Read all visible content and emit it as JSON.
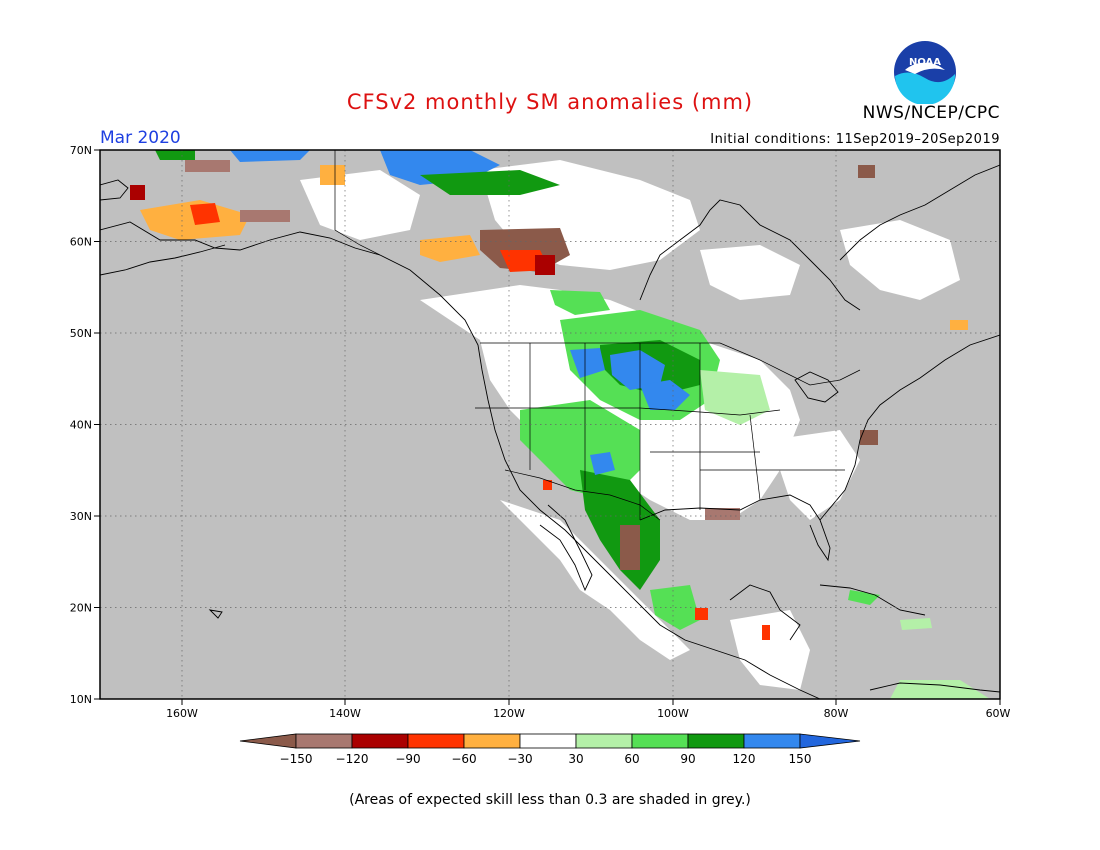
{
  "title": "CFSv2 monthly SM anomalies (mm)",
  "month": "Mar 2020",
  "initial_conditions": "Initial conditions: 11Sep2019–20Sep2019",
  "agency": "NWS/NCEP/CPC",
  "logo_text": "NOAA",
  "footnote": "(Areas of expected skill less than 0.3 are shaded in grey.)",
  "axes": {
    "lon_labels": [
      "160W",
      "140W",
      "120W",
      "100W",
      "80W",
      "60W"
    ],
    "lat_labels": [
      "70N",
      "60N",
      "50N",
      "40N",
      "30N",
      "20N",
      "10N"
    ]
  },
  "colors": {
    "land_grey": "#c0c0c0",
    "title_red": "#dd1111",
    "month_blue": "#1e3fe0"
  },
  "colorbar": {
    "ticks": [
      "−150",
      "−120",
      "−90",
      "−60",
      "−30",
      "30",
      "60",
      "90",
      "120",
      "150"
    ],
    "bins": [
      "#8b5a4a",
      "#a87870",
      "#aa0000",
      "#ff3300",
      "#ffb040",
      "#ffffff",
      "#b4f0a8",
      "#55e055",
      "#119911",
      "#3388ee",
      "#2266dd"
    ]
  }
}
